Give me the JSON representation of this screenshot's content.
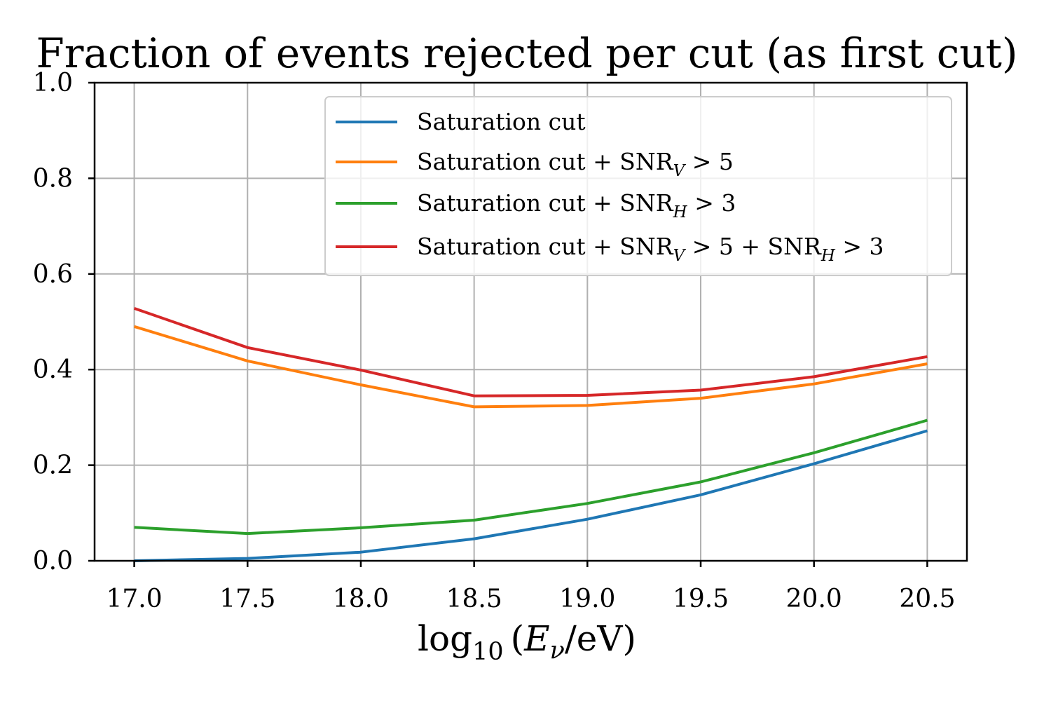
{
  "chart_data": {
    "type": "line",
    "title": "Fraction of events rejected per cut (as first cut)",
    "xlabel": {
      "prefix": "log",
      "sub": "10",
      "open": "(",
      "var": "E",
      "var_sub": "ν",
      "rest": "/eV)"
    },
    "ylabel": "",
    "xlim": [
      16.825,
      20.675
    ],
    "ylim": [
      0.0,
      1.0
    ],
    "grid": true,
    "legend_position": "upper-right",
    "x": [
      17.0,
      17.5,
      18.0,
      18.5,
      19.0,
      19.5,
      20.0,
      20.5
    ],
    "x_tick_labels": [
      "17.0",
      "17.5",
      "18.0",
      "18.5",
      "19.0",
      "19.5",
      "20.0",
      "20.5"
    ],
    "y_ticks": [
      0.0,
      0.2,
      0.4,
      0.6,
      0.8,
      1.0
    ],
    "y_tick_labels": [
      "0.0",
      "0.2",
      "0.4",
      "0.6",
      "0.8",
      "1.0"
    ],
    "series": [
      {
        "name": "Saturation cut",
        "legend": [
          {
            "t": "Saturation cut"
          }
        ],
        "color": "#1f77b4",
        "values": [
          0.0,
          0.005,
          0.018,
          0.046,
          0.087,
          0.138,
          0.203,
          0.272
        ]
      },
      {
        "name": "Saturation cut + SNR_V > 5",
        "legend": [
          {
            "t": "Saturation cut + SNR"
          },
          {
            "sub": "V"
          },
          {
            "t": " > 5"
          }
        ],
        "color": "#ff7f0e",
        "values": [
          0.49,
          0.418,
          0.368,
          0.322,
          0.325,
          0.34,
          0.37,
          0.412
        ]
      },
      {
        "name": "Saturation cut + SNR_H > 3",
        "legend": [
          {
            "t": "Saturation cut + SNR"
          },
          {
            "sub": "H"
          },
          {
            "t": " > 3"
          }
        ],
        "color": "#2ca02c",
        "values": [
          0.07,
          0.057,
          0.069,
          0.085,
          0.12,
          0.165,
          0.226,
          0.294
        ]
      },
      {
        "name": "Saturation cut + SNR_V > 5 + SNR_H > 3",
        "legend": [
          {
            "t": "Saturation cut + SNR"
          },
          {
            "sub": "V"
          },
          {
            "t": " > 5 + SNR"
          },
          {
            "sub": "H"
          },
          {
            "t": " > 3"
          }
        ],
        "color": "#d62728",
        "values": [
          0.528,
          0.446,
          0.399,
          0.345,
          0.346,
          0.357,
          0.385,
          0.427
        ]
      }
    ]
  }
}
